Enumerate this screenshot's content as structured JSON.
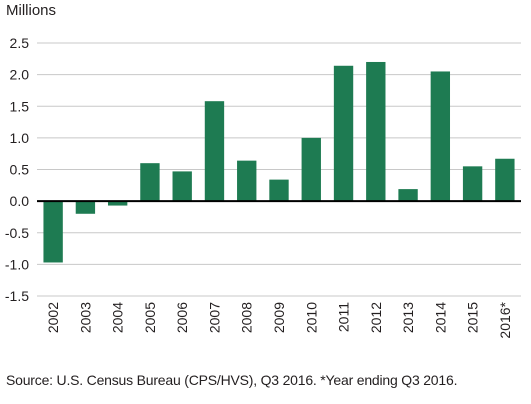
{
  "chart_data": {
    "type": "bar",
    "unit_label": "Millions",
    "categories": [
      "2002",
      "2003",
      "2004",
      "2005",
      "2006",
      "2007",
      "2008",
      "2009",
      "2010",
      "2011",
      "2012",
      "2013",
      "2014",
      "2015",
      "2016*"
    ],
    "values": [
      -0.97,
      -0.2,
      -0.07,
      0.6,
      0.47,
      1.58,
      0.64,
      0.34,
      1.0,
      2.14,
      2.2,
      0.19,
      2.05,
      0.55,
      0.67
    ],
    "y_ticks": [
      "2.5",
      "2.0",
      "1.5",
      "1.0",
      "0.5",
      "0.0",
      "-0.5",
      "-1.0",
      "-1.5"
    ],
    "ylim": [
      -1.5,
      2.5
    ],
    "grid": true,
    "bar_color": "#1e7b52",
    "grid_color": "#c8c8c8",
    "source": "Source: U.S. Census Bureau (CPS/HVS), Q3 2016. *Year ending Q3 2016."
  }
}
